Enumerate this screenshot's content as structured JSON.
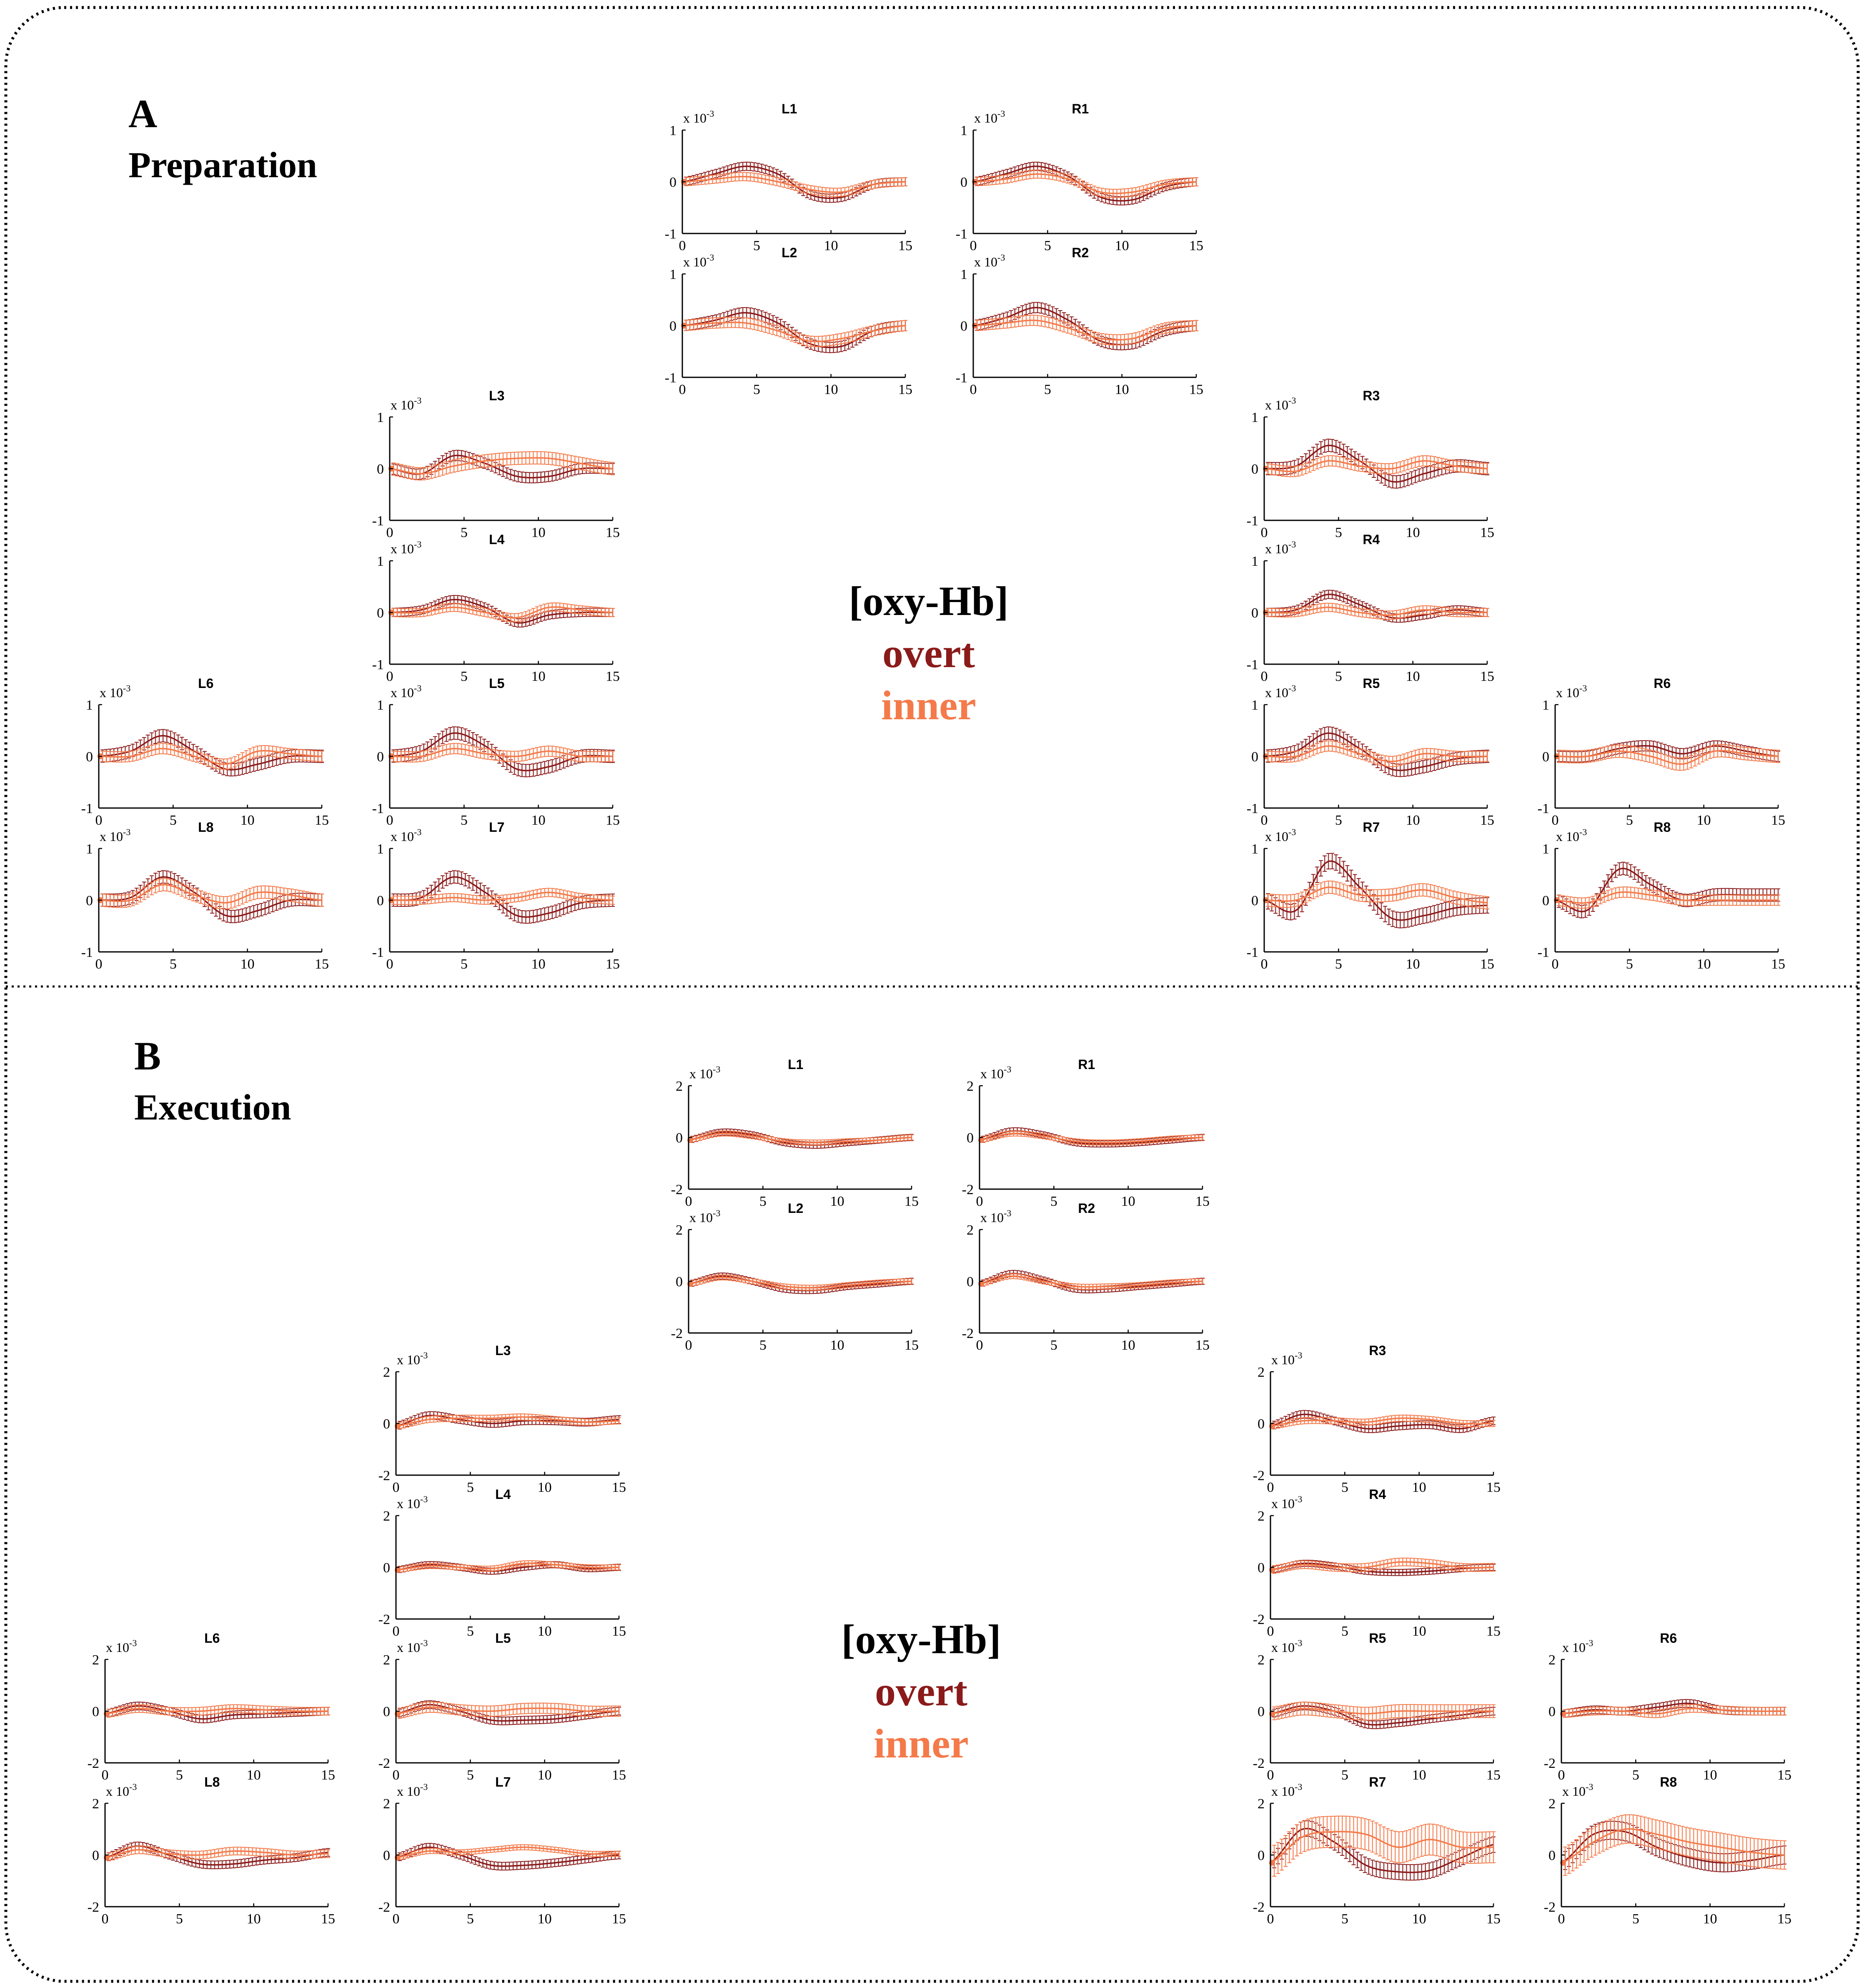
{
  "colors": {
    "overt": "#8b1a1a",
    "inner": "#f47a4a",
    "frame": "#000000"
  },
  "legend": {
    "title": "[oxy-Hb]",
    "overt": "overt",
    "inner": "inner"
  },
  "sections": [
    {
      "letter": "A",
      "title": "Preparation"
    },
    {
      "letter": "B",
      "title": "Execution"
    }
  ],
  "axis_exponent": {
    "base": "x 10",
    "power": "-3"
  },
  "chart_data": [
    {
      "section": "A",
      "title": "Preparation",
      "type": "line",
      "xlim": [
        0,
        15
      ],
      "xticks": [
        0,
        5,
        10,
        15
      ],
      "ylim": [
        -1,
        1
      ],
      "yticks": [
        -1,
        0,
        1
      ],
      "yunit": "x 10^-3",
      "series": [
        {
          "name": "overt",
          "channels": {
            "L1": {
              "y": [
                0,
                0.15,
                0.3,
                0.15,
                -0.25,
                -0.3,
                -0.05,
                0
              ],
              "err": 0.08
            },
            "R1": {
              "y": [
                0,
                0.15,
                0.3,
                0.1,
                -0.3,
                -0.35,
                -0.1,
                0
              ],
              "err": 0.08
            },
            "L2": {
              "y": [
                0,
                0.1,
                0.25,
                0.05,
                -0.35,
                -0.4,
                -0.1,
                0
              ],
              "err": 0.1
            },
            "R2": {
              "y": [
                0,
                0.15,
                0.35,
                0.1,
                -0.3,
                -0.35,
                -0.1,
                0
              ],
              "err": 0.1
            },
            "L3": {
              "y": [
                0,
                -0.1,
                0.25,
                0.1,
                -0.15,
                -0.15,
                0,
                0
              ],
              "err": 0.1
            },
            "R3": {
              "y": [
                0,
                0.05,
                0.45,
                0.15,
                -0.25,
                -0.1,
                0.05,
                0
              ],
              "err": 0.12
            },
            "L4": {
              "y": [
                0,
                0.05,
                0.25,
                0.1,
                -0.2,
                -0.05,
                0,
                0
              ],
              "err": 0.08
            },
            "R4": {
              "y": [
                0,
                0.05,
                0.35,
                0.15,
                -0.1,
                -0.05,
                0.05,
                0
              ],
              "err": 0.08
            },
            "L5": {
              "y": [
                0,
                0.1,
                0.45,
                0.2,
                -0.25,
                -0.2,
                0,
                0
              ],
              "err": 0.12
            },
            "R5": {
              "y": [
                0,
                0.1,
                0.45,
                0.15,
                -0.25,
                -0.2,
                -0.05,
                0
              ],
              "err": 0.12
            },
            "L6": {
              "y": [
                0,
                0.1,
                0.4,
                0.1,
                -0.25,
                -0.15,
                0,
                0
              ],
              "err": 0.12
            },
            "R6": {
              "y": [
                0,
                0,
                0.15,
                0.2,
                0.05,
                0.2,
                0.1,
                0
              ],
              "err": 0.1
            },
            "L7": {
              "y": [
                0,
                0.05,
                0.45,
                0.15,
                -0.3,
                -0.25,
                -0.05,
                0
              ],
              "err": 0.12
            },
            "R7": {
              "y": [
                0,
                -0.2,
                0.75,
                0.25,
                -0.35,
                -0.3,
                -0.15,
                -0.1
              ],
              "err": 0.15
            },
            "L8": {
              "y": [
                0,
                0.05,
                0.45,
                0.15,
                -0.3,
                -0.2,
                0,
                0
              ],
              "err": 0.12
            },
            "R8": {
              "y": [
                0,
                -0.2,
                0.6,
                0.3,
                0,
                0.1,
                0.1,
                0.1
              ],
              "err": 0.12
            }
          }
        },
        {
          "name": "inner",
          "channels": {
            "L1": {
              "y": [
                0,
                0.05,
                0.1,
                0,
                -0.15,
                -0.2,
                -0.05,
                0
              ],
              "err": 0.08
            },
            "R1": {
              "y": [
                0,
                0.05,
                0.15,
                0.05,
                -0.2,
                -0.2,
                -0.05,
                0
              ],
              "err": 0.08
            },
            "L2": {
              "y": [
                0,
                0.05,
                0.05,
                -0.1,
                -0.3,
                -0.25,
                -0.1,
                0
              ],
              "err": 0.1
            },
            "R2": {
              "y": [
                0,
                0.05,
                0.1,
                -0.05,
                -0.25,
                -0.25,
                -0.05,
                0
              ],
              "err": 0.1
            },
            "L3": {
              "y": [
                0,
                -0.1,
                0.05,
                0.15,
                0.2,
                0.2,
                0.1,
                0
              ],
              "err": 0.12
            },
            "R3": {
              "y": [
                0,
                -0.05,
                0.15,
                0.05,
                0,
                0.15,
                0.05,
                0
              ],
              "err": 0.1
            },
            "L4": {
              "y": [
                0,
                0,
                0.1,
                0,
                -0.1,
                0.1,
                0.05,
                0
              ],
              "err": 0.08
            },
            "R4": {
              "y": [
                0,
                0,
                0.1,
                0,
                -0.05,
                0.05,
                0,
                0
              ],
              "err": 0.08
            },
            "L5": {
              "y": [
                0,
                0,
                0.15,
                0.05,
                0,
                0.1,
                0,
                0
              ],
              "err": 0.1
            },
            "R5": {
              "y": [
                0,
                0,
                0.2,
                0.05,
                -0.1,
                0.05,
                0,
                0
              ],
              "err": 0.1
            },
            "L6": {
              "y": [
                0,
                0,
                0.15,
                0,
                -0.15,
                0.1,
                0.05,
                0
              ],
              "err": 0.1
            },
            "R6": {
              "y": [
                0,
                0,
                0.1,
                0,
                -0.15,
                0.1,
                0.05,
                0
              ],
              "err": 0.12
            },
            "L7": {
              "y": [
                0,
                0,
                0.05,
                0,
                0.05,
                0.15,
                0.05,
                0
              ],
              "err": 0.08
            },
            "R7": {
              "y": [
                0,
                0,
                0.25,
                0.1,
                0.1,
                0.2,
                0.05,
                -0.05
              ],
              "err": 0.12
            },
            "L8": {
              "y": [
                0,
                0,
                0.3,
                0.1,
                -0.05,
                0.15,
                0.1,
                0
              ],
              "err": 0.12
            },
            "R8": {
              "y": [
                0,
                -0.05,
                0.15,
                0.1,
                0,
                0,
                0,
                0
              ],
              "err": 0.1
            }
          }
        }
      ]
    },
    {
      "section": "B",
      "title": "Execution",
      "type": "line",
      "xlim": [
        0,
        15
      ],
      "xticks": [
        0,
        5,
        10,
        15
      ],
      "ylim": [
        -2,
        2
      ],
      "yticks": [
        -2,
        0,
        2
      ],
      "yunit": "x 10^-3",
      "series": [
        {
          "name": "overt",
          "channels": {
            "L1": {
              "y": [
                -0.1,
                0.2,
                0.1,
                -0.2,
                -0.3,
                -0.2,
                -0.1,
                0
              ],
              "err": 0.12
            },
            "R1": {
              "y": [
                -0.1,
                0.25,
                0.1,
                -0.2,
                -0.25,
                -0.2,
                -0.1,
                0
              ],
              "err": 0.12
            },
            "L2": {
              "y": [
                -0.1,
                0.2,
                0,
                -0.3,
                -0.35,
                -0.2,
                -0.1,
                0
              ],
              "err": 0.12
            },
            "R2": {
              "y": [
                -0.1,
                0.3,
                0.05,
                -0.3,
                -0.3,
                -0.2,
                -0.1,
                0
              ],
              "err": 0.12
            },
            "L3": {
              "y": [
                -0.1,
                0.3,
                0.15,
                0,
                0.1,
                0.1,
                0.05,
                0.15
              ],
              "err": 0.15
            },
            "R3": {
              "y": [
                -0.1,
                0.35,
                0.1,
                -0.2,
                -0.1,
                -0.05,
                -0.2,
                0.1
              ],
              "err": 0.15
            },
            "L4": {
              "y": [
                -0.1,
                0.1,
                0,
                -0.15,
                0,
                0.1,
                -0.05,
                0
              ],
              "err": 0.12
            },
            "R4": {
              "y": [
                -0.1,
                0.15,
                0.05,
                -0.15,
                -0.2,
                -0.15,
                -0.05,
                0
              ],
              "err": 0.12
            },
            "L5": {
              "y": [
                -0.1,
                0.25,
                0,
                -0.35,
                -0.35,
                -0.3,
                -0.15,
                0
              ],
              "err": 0.15
            },
            "R5": {
              "y": [
                -0.1,
                0.2,
                0,
                -0.5,
                -0.45,
                -0.3,
                -0.15,
                0
              ],
              "err": 0.15
            },
            "L6": {
              "y": [
                -0.1,
                0.2,
                0,
                -0.3,
                -0.15,
                -0.1,
                -0.05,
                0
              ],
              "err": 0.15
            },
            "R6": {
              "y": [
                -0.1,
                0.05,
                0,
                0.15,
                0.3,
                0.05,
                0,
                0
              ],
              "err": 0.15
            },
            "L7": {
              "y": [
                -0.1,
                0.3,
                0,
                -0.4,
                -0.4,
                -0.3,
                -0.15,
                0
              ],
              "err": 0.15
            },
            "R7": {
              "y": [
                -0.3,
                1.0,
                0.5,
                -0.4,
                -0.65,
                -0.6,
                -0.1,
                0.4
              ],
              "err": 0.3
            },
            "L8": {
              "y": [
                -0.1,
                0.35,
                0,
                -0.35,
                -0.35,
                -0.2,
                -0.1,
                0.1
              ],
              "err": 0.15
            },
            "R8": {
              "y": [
                -0.3,
                0.8,
                0.9,
                0.3,
                -0.1,
                -0.3,
                -0.2,
                0
              ],
              "err": 0.35
            }
          }
        },
        {
          "name": "inner",
          "channels": {
            "L1": {
              "y": [
                -0.1,
                0.15,
                0.05,
                -0.15,
                -0.2,
                -0.15,
                -0.1,
                0
              ],
              "err": 0.1
            },
            "R1": {
              "y": [
                -0.1,
                0.15,
                0.05,
                -0.15,
                -0.2,
                -0.15,
                -0.05,
                0
              ],
              "err": 0.1
            },
            "L2": {
              "y": [
                -0.1,
                0.15,
                0,
                -0.2,
                -0.25,
                -0.15,
                -0.05,
                0
              ],
              "err": 0.1
            },
            "R2": {
              "y": [
                -0.1,
                0.2,
                0,
                -0.2,
                -0.2,
                -0.15,
                -0.05,
                0
              ],
              "err": 0.1
            },
            "L3": {
              "y": [
                -0.1,
                0.15,
                0.2,
                0.2,
                0.25,
                0.15,
                0.05,
                0.1
              ],
              "err": 0.12
            },
            "R3": {
              "y": [
                -0.1,
                0.1,
                0.1,
                0.05,
                0.2,
                0.15,
                0,
                0
              ],
              "err": 0.12
            },
            "L4": {
              "y": [
                -0.1,
                0.05,
                0,
                -0.05,
                0.15,
                0.1,
                0,
                0
              ],
              "err": 0.1
            },
            "R4": {
              "y": [
                -0.1,
                0.1,
                0,
                0,
                0.2,
                0.15,
                0,
                0
              ],
              "err": 0.15
            },
            "L5": {
              "y": [
                -0.1,
                0.15,
                0.05,
                0,
                0.1,
                0.1,
                0,
                0
              ],
              "err": 0.2
            },
            "R5": {
              "y": [
                -0.1,
                0.1,
                0,
                -0.1,
                0,
                0,
                0,
                0
              ],
              "err": 0.25
            },
            "L6": {
              "y": [
                -0.1,
                0.1,
                0,
                0,
                0.1,
                0.05,
                0,
                0
              ],
              "err": 0.15
            },
            "R6": {
              "y": [
                -0.1,
                0,
                0,
                -0.1,
                0.1,
                0.05,
                0,
                0
              ],
              "err": 0.15
            },
            "L7": {
              "y": [
                -0.1,
                0.15,
                0.1,
                0.2,
                0.3,
                0.2,
                0.05,
                0.05
              ],
              "err": 0.1
            },
            "R7": {
              "y": [
                -0.3,
                0.7,
                0.9,
                0.8,
                0.3,
                0.6,
                0.3,
                0.3
              ],
              "err": 0.6
            },
            "L8": {
              "y": [
                -0.1,
                0.2,
                0.05,
                0,
                0.15,
                0.1,
                0,
                0.05
              ],
              "err": 0.15
            },
            "R8": {
              "y": [
                -0.3,
                0.5,
                1.0,
                0.8,
                0.5,
                0.3,
                0.1,
                0
              ],
              "err": 0.55
            }
          }
        }
      ]
    }
  ]
}
